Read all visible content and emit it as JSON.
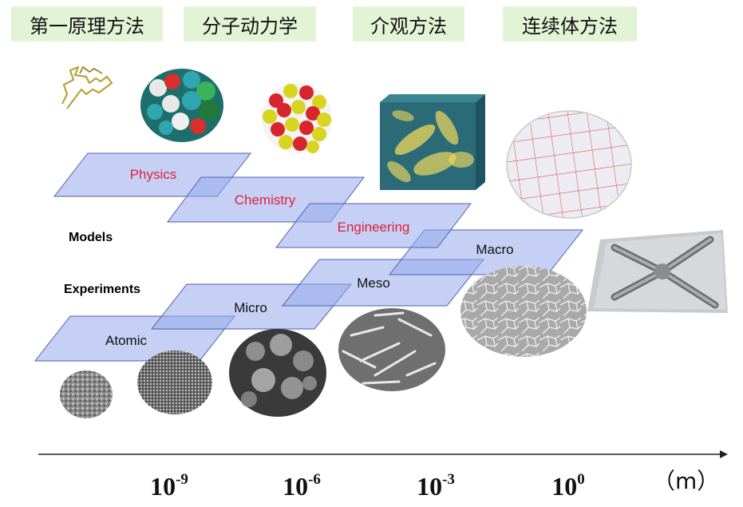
{
  "top_tags": [
    {
      "label": "第一原理方法"
    },
    {
      "label": "分子动力学"
    },
    {
      "label": "介观方法"
    },
    {
      "label": "连续体方法"
    }
  ],
  "row_labels": {
    "models": "Models",
    "experiments": "Experiments",
    "models_color": "#e0203a",
    "experiments_color": "#111111"
  },
  "model_planes": [
    {
      "label": "Physics"
    },
    {
      "label": "Chemistry"
    },
    {
      "label": "Engineering"
    }
  ],
  "experiment_planes": [
    {
      "label": "Atomic"
    },
    {
      "label": "Micro"
    },
    {
      "label": "Meso"
    },
    {
      "label": "Macro"
    }
  ],
  "axis": {
    "ticks": [
      {
        "base": "10",
        "exp": "-9"
      },
      {
        "base": "10",
        "exp": "-6"
      },
      {
        "base": "10",
        "exp": "-3"
      },
      {
        "base": "10",
        "exp": "0"
      }
    ],
    "unit": "（m）"
  },
  "images": [
    {
      "icon": "polymer-chain-icon"
    },
    {
      "icon": "molecule-spacefill-icon"
    },
    {
      "icon": "atom-cluster-icon"
    },
    {
      "icon": "mesoscale-crystals-icon"
    },
    {
      "icon": "fem-mesh-sphere-icon"
    },
    {
      "icon": "metal-part-photo-icon"
    },
    {
      "icon": "atomic-surface-micrograph-icon"
    },
    {
      "icon": "micro-grain-micrograph-icon"
    },
    {
      "icon": "micro-particle-micrograph-icon"
    },
    {
      "icon": "meso-needle-micrograph-icon"
    },
    {
      "icon": "macro-grain-micrograph-icon"
    }
  ]
}
